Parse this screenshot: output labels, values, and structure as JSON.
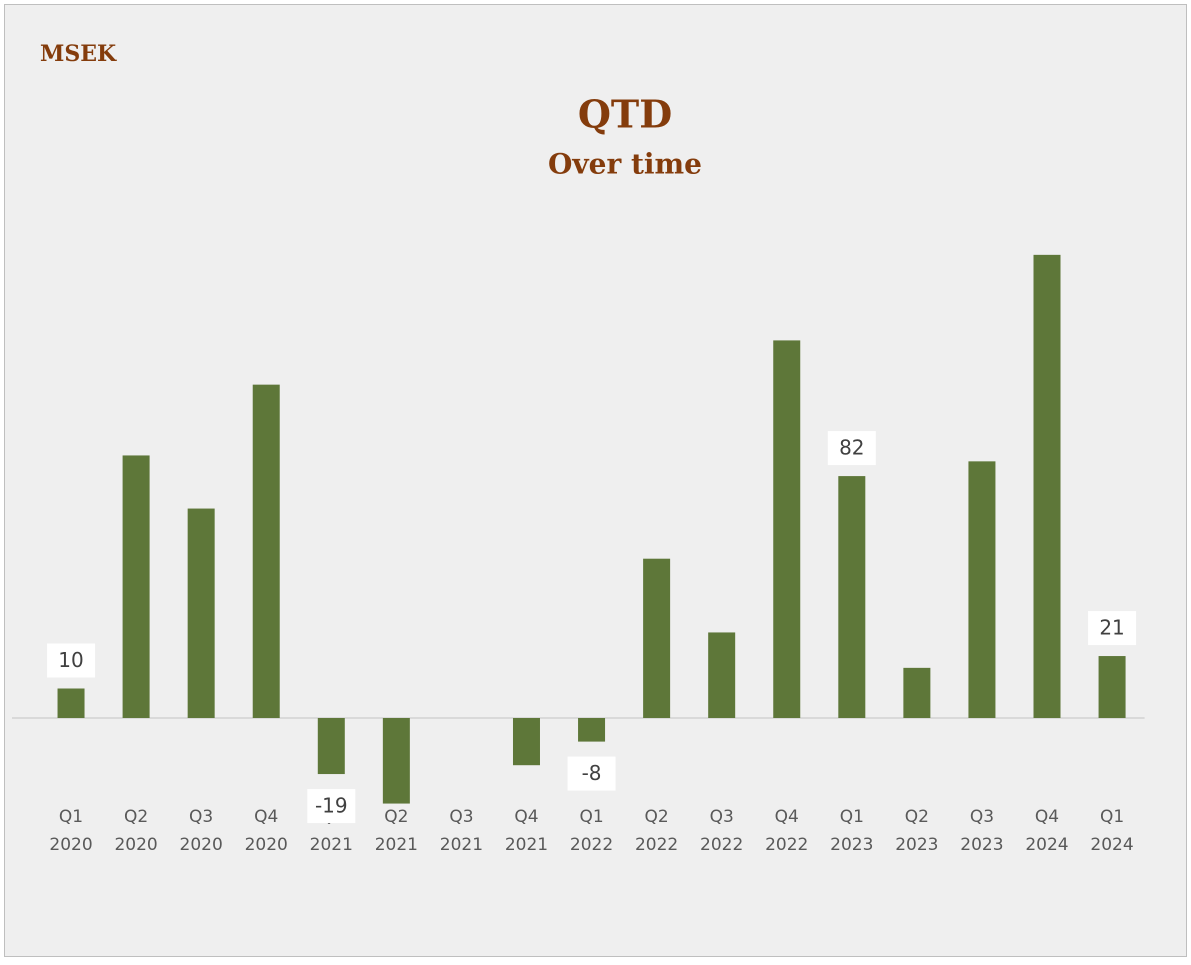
{
  "chart_data": {
    "type": "bar",
    "unit": "MSEK",
    "title": "QTD",
    "subtitle": "Over time",
    "categories": [
      [
        "Q1",
        "2020"
      ],
      [
        "Q2",
        "2020"
      ],
      [
        "Q3",
        "2020"
      ],
      [
        "Q4",
        "2020"
      ],
      [
        "Q1",
        "2021"
      ],
      [
        "Q2",
        "2021"
      ],
      [
        "Q3",
        "2021"
      ],
      [
        "Q4",
        "2021"
      ],
      [
        "Q1",
        "2022"
      ],
      [
        "Q2",
        "2022"
      ],
      [
        "Q3",
        "2022"
      ],
      [
        "Q4",
        "2022"
      ],
      [
        "Q1",
        "2023"
      ],
      [
        "Q2",
        "2023"
      ],
      [
        "Q3",
        "2023"
      ],
      [
        "Q4",
        "2024"
      ],
      [
        "Q1",
        "2024"
      ]
    ],
    "values": [
      10,
      89,
      71,
      113,
      -19,
      -29,
      0,
      -16,
      -8,
      54,
      29,
      128,
      82,
      17,
      87,
      157,
      21
    ],
    "value_labels": [
      "10",
      null,
      null,
      null,
      "-19",
      null,
      null,
      null,
      "-8",
      null,
      null,
      null,
      "82",
      null,
      null,
      null,
      "21"
    ],
    "color": "#5e7739",
    "ylim": [
      -50,
      170
    ],
    "grid": false
  }
}
